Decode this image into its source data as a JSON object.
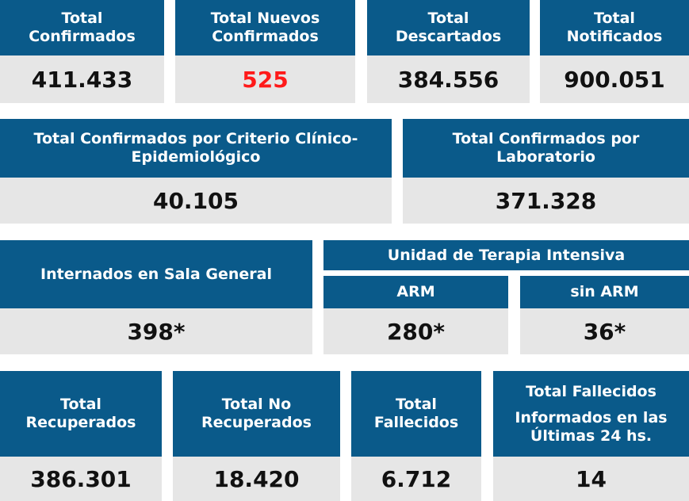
{
  "row1": [
    {
      "label_lines": [
        "Total",
        "Confirmados"
      ],
      "value": "411.433"
    },
    {
      "label_lines": [
        "Total Nuevos",
        "Confirmados"
      ],
      "value": "525",
      "accent": "#ff1a1a"
    },
    {
      "label_lines": [
        "Total",
        "Descartados"
      ],
      "value": "384.556"
    },
    {
      "label_lines": [
        "Total",
        "Notificados"
      ],
      "value": "900.051"
    }
  ],
  "row2": [
    {
      "label_lines": [
        "Total Confirmados por Criterio Clínico-",
        "Epidemiológico"
      ],
      "value": "40.105"
    },
    {
      "label_lines": [
        "Total Confirmados por",
        "Laboratorio"
      ],
      "value": "371.328"
    }
  ],
  "row3": {
    "general": {
      "label": "Internados en Sala General",
      "value": "398*"
    },
    "uti": {
      "label": "Unidad de Terapia Intensiva",
      "arm": {
        "label": "ARM",
        "value": "280*"
      },
      "sin_arm": {
        "label": "sin ARM",
        "value": "36*"
      }
    }
  },
  "row4": [
    {
      "label_lines": [
        "Total",
        "Recuperados"
      ],
      "value": "386.301"
    },
    {
      "label_lines": [
        "Total No",
        "Recuperados"
      ],
      "value": "18.420"
    },
    {
      "label_lines": [
        "Total",
        "Fallecidos"
      ],
      "value": "6.712"
    },
    {
      "label_lines": [
        "Total Fallecidos",
        "Informados en las",
        "Últimas 24 hs."
      ],
      "value": "14"
    }
  ],
  "colors": {
    "header_bg": "#0a5a8a",
    "value_bg": "#e6e6e6",
    "accent_red": "#ff1a1a"
  }
}
